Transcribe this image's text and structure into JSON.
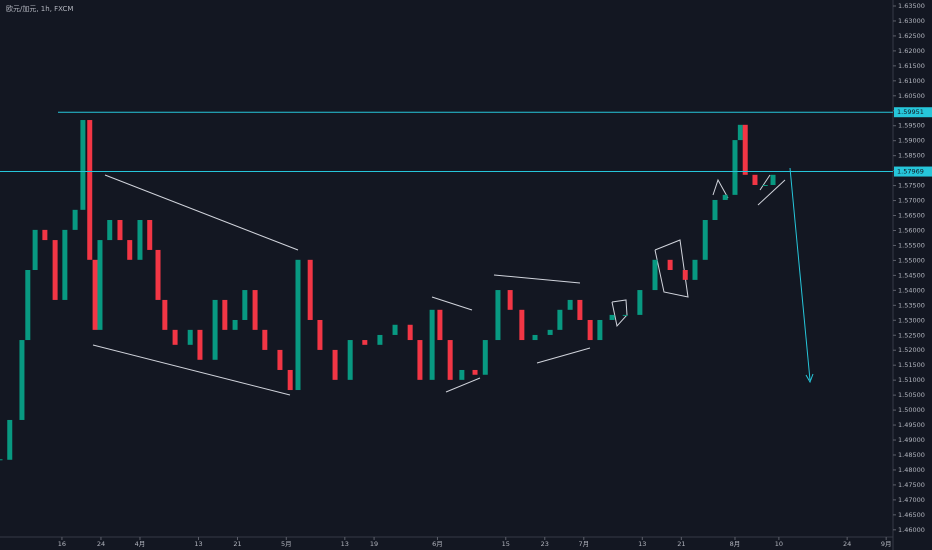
{
  "chart_data": {
    "type": "candlestick",
    "title": "欧元/加元, 1h, FXCM",
    "x": [
      62.3,
      64.3,
      66.8,
      68.0,
      69.5,
      71.5,
      73.6,
      75.6,
      77.7,
      79.3,
      80.7,
      81.8,
      82.8,
      84.8,
      86.9,
      88.9,
      91.0,
      93.0,
      94.7,
      96.1,
      98.2,
      101.3,
      103.3,
      106.4,
      108.4,
      110.5,
      112.5,
      114.6,
      116.6,
      119.7,
      121.8,
      123.4,
      125.9,
      127.9,
      131.0,
      134.1,
      137.1,
      140.2,
      143.3,
      146.4,
      148.4,
      150.9,
      152.5,
      154.6,
      157.0,
      159.7,
      161.8,
      164.4,
      166.9,
      169.3,
      172.0,
      175.1,
      177.1,
      179.2,
      181.2,
      183.3,
      185.3,
      187.8,
      190.5,
      193.5,
      196.6,
      199.7,
      202.8,
      204.8,
      206.9,
      208.9,
      211.0,
      213.0,
      214.1,
      215.1,
      217.1,
      219.2,
      220.8
    ],
    "values": [
      1.4834,
      1.4967,
      1.5234,
      1.5468,
      1.5602,
      1.5568,
      1.5368,
      1.5602,
      1.5669,
      1.5969,
      1.5502,
      1.5268,
      1.5568,
      1.5635,
      1.5568,
      1.5502,
      1.5635,
      1.5535,
      1.5368,
      1.5268,
      1.5218,
      1.5268,
      1.5168,
      1.5368,
      1.5268,
      1.5301,
      1.5401,
      1.5268,
      1.5201,
      1.5134,
      1.5067,
      1.5502,
      1.5301,
      1.5201,
      1.5101,
      1.5234,
      1.5218,
      1.5251,
      1.5285,
      1.5234,
      1.5101,
      1.5335,
      1.5234,
      1.5101,
      1.5134,
      1.5118,
      1.5234,
      1.5401,
      1.5335,
      1.5234,
      1.5251,
      1.5268,
      1.5335,
      1.5368,
      1.5301,
      1.5234,
      1.5301,
      1.5318,
      1.5318,
      1.5401,
      1.5502,
      1.5468,
      1.5435,
      1.5502,
      1.5635,
      1.5702,
      1.5719,
      1.5902,
      1.5953,
      1.5786,
      1.5752,
      1.5752,
      1.5786
    ],
    "up_color": "#089981",
    "down_color": "#f23645",
    "levels": [
      {
        "value": 1.59951,
        "color": "#26c6da"
      },
      {
        "value": 1.57969,
        "color": "#26c6da"
      }
    ],
    "xlim": [
      62.3,
      245.4
    ],
    "ylim": [
      1.4576,
      1.637
    ],
    "xticks": [
      {
        "value": 75,
        "label": "16"
      },
      {
        "value": 83,
        "label": "24"
      },
      {
        "value": 91,
        "label": "4月"
      },
      {
        "value": 103,
        "label": "13"
      },
      {
        "value": 111,
        "label": "21"
      },
      {
        "value": 121,
        "label": "5月"
      },
      {
        "value": 133,
        "label": "13"
      },
      {
        "value": 139,
        "label": "19"
      },
      {
        "value": 152,
        "label": "6月"
      },
      {
        "value": 166,
        "label": "15"
      },
      {
        "value": 174,
        "label": "23"
      },
      {
        "value": 182,
        "label": "7月"
      },
      {
        "value": 194,
        "label": "13"
      },
      {
        "value": 202,
        "label": "21"
      },
      {
        "value": 213,
        "label": "8月"
      },
      {
        "value": 222,
        "label": "10"
      },
      {
        "value": 236,
        "label": "24"
      },
      {
        "value": 244,
        "label": "9月"
      }
    ],
    "yticks": [
      {
        "value": 1.46,
        "label": "1.46000"
      },
      {
        "value": 1.465,
        "label": "1.46500"
      },
      {
        "value": 1.47,
        "label": "1.47000"
      },
      {
        "value": 1.475,
        "label": "1.47500"
      },
      {
        "value": 1.48,
        "label": "1.48000"
      },
      {
        "value": 1.485,
        "label": "1.48500"
      },
      {
        "value": 1.49,
        "label": "1.49000"
      },
      {
        "value": 1.495,
        "label": "1.49500"
      },
      {
        "value": 1.5,
        "label": "1.50000"
      },
      {
        "value": 1.505,
        "label": "1.50500"
      },
      {
        "value": 1.51,
        "label": "1.51000"
      },
      {
        "value": 1.515,
        "label": "1.51500"
      },
      {
        "value": 1.52,
        "label": "1.52000"
      },
      {
        "value": 1.525,
        "label": "1.52500"
      },
      {
        "value": 1.53,
        "label": "1.53000"
      },
      {
        "value": 1.535,
        "label": "1.53500"
      },
      {
        "value": 1.54,
        "label": "1.54000"
      },
      {
        "value": 1.545,
        "label": "1.54500"
      },
      {
        "value": 1.55,
        "label": "1.55000"
      },
      {
        "value": 1.555,
        "label": "1.55500"
      },
      {
        "value": 1.56,
        "label": "1.56000"
      },
      {
        "value": 1.565,
        "label": "1.56500"
      },
      {
        "value": 1.57,
        "label": "1.57000"
      },
      {
        "value": 1.575,
        "label": "1.57500"
      },
      {
        "value": 1.58,
        "label": "1.58000"
      },
      {
        "value": 1.585,
        "label": "1.58500"
      },
      {
        "value": 1.59,
        "label": "1.59000"
      },
      {
        "value": 1.595,
        "label": "1.59500"
      },
      {
        "value": 1.6,
        "label": "1.60000"
      },
      {
        "value": 1.605,
        "label": "1.60500"
      },
      {
        "value": 1.61,
        "label": "1.61000"
      },
      {
        "value": 1.615,
        "label": "1.61500"
      },
      {
        "value": 1.62,
        "label": "1.62000"
      },
      {
        "value": 1.625,
        "label": "1.62500"
      },
      {
        "value": 1.63,
        "label": "1.63000"
      },
      {
        "value": 1.635,
        "label": "1.63500"
      }
    ]
  }
}
